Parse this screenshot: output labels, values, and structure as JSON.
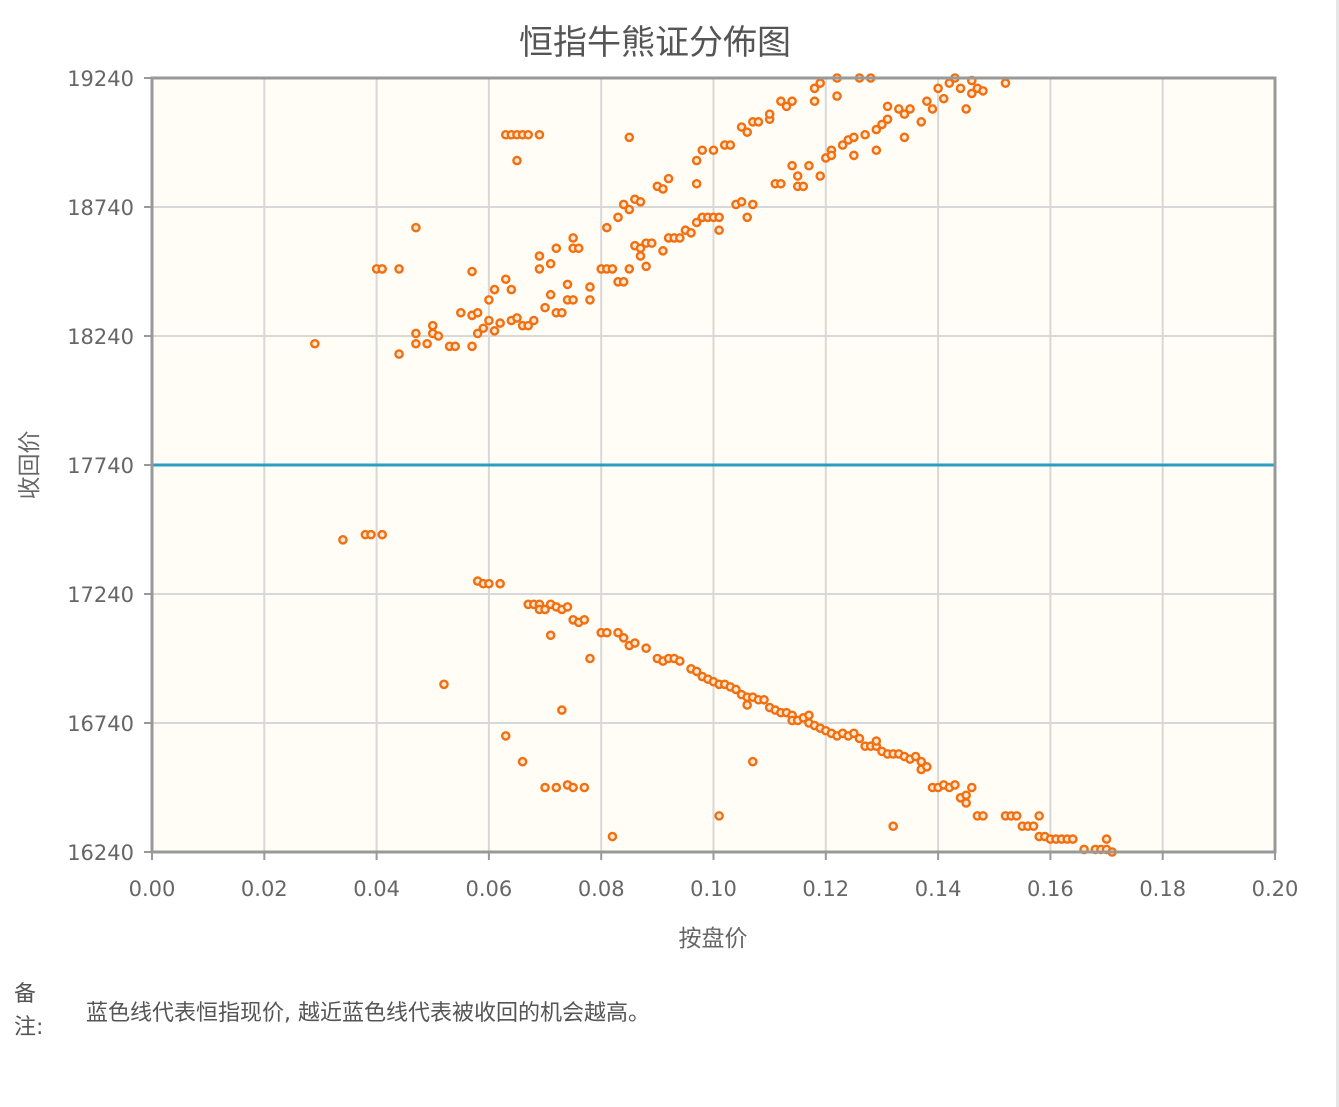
{
  "chart_data": {
    "type": "scatter",
    "title": "恒指牛熊证分佈图",
    "xlabel": "按盘价",
    "ylabel": "收回价",
    "xlim": [
      0,
      0.2
    ],
    "ylim": [
      16240,
      19240
    ],
    "x_ticks": [
      "0.00",
      "0.02",
      "0.04",
      "0.06",
      "0.08",
      "0.10",
      "0.12",
      "0.14",
      "0.16",
      "0.18",
      "0.20"
    ],
    "y_ticks": [
      "16240",
      "16740",
      "17240",
      "17740",
      "18240",
      "18740",
      "19240"
    ],
    "grid": true,
    "reference_line": {
      "y": 17740,
      "color": "#2a9fc2"
    },
    "point_color": "#f26f0f",
    "background": "#fffdf6",
    "points": [
      [
        0.029,
        18210
      ],
      [
        0.034,
        17450
      ],
      [
        0.038,
        17470
      ],
      [
        0.039,
        17470
      ],
      [
        0.041,
        17470
      ],
      [
        0.04,
        18500
      ],
      [
        0.041,
        18500
      ],
      [
        0.044,
        18500
      ],
      [
        0.044,
        18170
      ],
      [
        0.047,
        18210
      ],
      [
        0.047,
        18250
      ],
      [
        0.047,
        18660
      ],
      [
        0.049,
        18210
      ],
      [
        0.05,
        18250
      ],
      [
        0.05,
        18280
      ],
      [
        0.051,
        18240
      ],
      [
        0.052,
        16890
      ],
      [
        0.053,
        18200
      ],
      [
        0.054,
        18200
      ],
      [
        0.055,
        18330
      ],
      [
        0.057,
        18320
      ],
      [
        0.057,
        18320
      ],
      [
        0.058,
        18330
      ],
      [
        0.057,
        18200
      ],
      [
        0.057,
        18490
      ],
      [
        0.058,
        18250
      ],
      [
        0.059,
        18270
      ],
      [
        0.06,
        18300
      ],
      [
        0.06,
        18380
      ],
      [
        0.061,
        18420
      ],
      [
        0.061,
        18260
      ],
      [
        0.062,
        18290
      ],
      [
        0.063,
        18460
      ],
      [
        0.064,
        18420
      ],
      [
        0.064,
        18300
      ],
      [
        0.065,
        18310
      ],
      [
        0.066,
        18280
      ],
      [
        0.067,
        18280
      ],
      [
        0.068,
        18300
      ],
      [
        0.069,
        18500
      ],
      [
        0.069,
        18550
      ],
      [
        0.07,
        18350
      ],
      [
        0.071,
        18400
      ],
      [
        0.071,
        18520
      ],
      [
        0.072,
        18580
      ],
      [
        0.072,
        18330
      ],
      [
        0.073,
        18330
      ],
      [
        0.074,
        18380
      ],
      [
        0.074,
        18440
      ],
      [
        0.075,
        18380
      ],
      [
        0.075,
        18620
      ],
      [
        0.075,
        18580
      ],
      [
        0.076,
        18580
      ],
      [
        0.078,
        18380
      ],
      [
        0.078,
        18430
      ],
      [
        0.08,
        18500
      ],
      [
        0.081,
        18500
      ],
      [
        0.081,
        18660
      ],
      [
        0.082,
        18500
      ],
      [
        0.083,
        18450
      ],
      [
        0.083,
        18700
      ],
      [
        0.084,
        18450
      ],
      [
        0.084,
        18750
      ],
      [
        0.085,
        18500
      ],
      [
        0.085,
        18730
      ],
      [
        0.086,
        18590
      ],
      [
        0.086,
        18770
      ],
      [
        0.087,
        18550
      ],
      [
        0.087,
        18760
      ],
      [
        0.087,
        18580
      ],
      [
        0.088,
        18600
      ],
      [
        0.088,
        18510
      ],
      [
        0.089,
        18600
      ],
      [
        0.09,
        18820
      ],
      [
        0.091,
        18570
      ],
      [
        0.091,
        18810
      ],
      [
        0.092,
        18850
      ],
      [
        0.092,
        18620
      ],
      [
        0.093,
        18620
      ],
      [
        0.094,
        18620
      ],
      [
        0.095,
        18650
      ],
      [
        0.096,
        18640
      ],
      [
        0.097,
        18680
      ],
      [
        0.097,
        18830
      ],
      [
        0.097,
        18920
      ],
      [
        0.098,
        18960
      ],
      [
        0.098,
        18700
      ],
      [
        0.099,
        18700
      ],
      [
        0.1,
        18700
      ],
      [
        0.1,
        18960
      ],
      [
        0.101,
        18700
      ],
      [
        0.101,
        18650
      ],
      [
        0.102,
        18980
      ],
      [
        0.103,
        18980
      ],
      [
        0.104,
        18750
      ],
      [
        0.105,
        18760
      ],
      [
        0.105,
        19050
      ],
      [
        0.106,
        18700
      ],
      [
        0.106,
        19030
      ],
      [
        0.107,
        18750
      ],
      [
        0.107,
        19070
      ],
      [
        0.108,
        19070
      ],
      [
        0.11,
        19080
      ],
      [
        0.11,
        19100
      ],
      [
        0.111,
        18830
      ],
      [
        0.112,
        18830
      ],
      [
        0.112,
        19150
      ],
      [
        0.113,
        19130
      ],
      [
        0.114,
        19150
      ],
      [
        0.114,
        18900
      ],
      [
        0.115,
        18860
      ],
      [
        0.115,
        18820
      ],
      [
        0.116,
        18820
      ],
      [
        0.117,
        18900
      ],
      [
        0.118,
        19150
      ],
      [
        0.118,
        19200
      ],
      [
        0.119,
        18860
      ],
      [
        0.119,
        19220
      ],
      [
        0.12,
        18930
      ],
      [
        0.121,
        18960
      ],
      [
        0.121,
        18940
      ],
      [
        0.122,
        19170
      ],
      [
        0.122,
        19240
      ],
      [
        0.123,
        18980
      ],
      [
        0.124,
        19000
      ],
      [
        0.125,
        18940
      ],
      [
        0.125,
        19010
      ],
      [
        0.126,
        19240
      ],
      [
        0.127,
        19020
      ],
      [
        0.128,
        19240
      ],
      [
        0.129,
        18960
      ],
      [
        0.129,
        19040
      ],
      [
        0.13,
        19060
      ],
      [
        0.131,
        19080
      ],
      [
        0.131,
        19130
      ],
      [
        0.133,
        19120
      ],
      [
        0.134,
        19100
      ],
      [
        0.134,
        19010
      ],
      [
        0.135,
        19120
      ],
      [
        0.137,
        19070
      ],
      [
        0.138,
        19150
      ],
      [
        0.139,
        19120
      ],
      [
        0.14,
        19200
      ],
      [
        0.141,
        19160
      ],
      [
        0.142,
        19220
      ],
      [
        0.143,
        19240
      ],
      [
        0.144,
        19200
      ],
      [
        0.145,
        19120
      ],
      [
        0.146,
        19180
      ],
      [
        0.146,
        19230
      ],
      [
        0.147,
        19200
      ],
      [
        0.148,
        19190
      ],
      [
        0.152,
        19220
      ],
      [
        0.063,
        19020
      ],
      [
        0.064,
        19020
      ],
      [
        0.065,
        19020
      ],
      [
        0.065,
        18920
      ],
      [
        0.066,
        19020
      ],
      [
        0.067,
        19020
      ],
      [
        0.069,
        19020
      ],
      [
        0.085,
        19010
      ],
      [
        0.058,
        17290
      ],
      [
        0.059,
        17280
      ],
      [
        0.06,
        17280
      ],
      [
        0.062,
        17280
      ],
      [
        0.063,
        16690
      ],
      [
        0.066,
        16590
      ],
      [
        0.067,
        17200
      ],
      [
        0.068,
        17200
      ],
      [
        0.069,
        17200
      ],
      [
        0.069,
        17180
      ],
      [
        0.07,
        17180
      ],
      [
        0.07,
        16490
      ],
      [
        0.071,
        17200
      ],
      [
        0.071,
        17080
      ],
      [
        0.072,
        16490
      ],
      [
        0.072,
        17190
      ],
      [
        0.073,
        16790
      ],
      [
        0.073,
        17180
      ],
      [
        0.074,
        17190
      ],
      [
        0.074,
        16500
      ],
      [
        0.075,
        17140
      ],
      [
        0.075,
        16490
      ],
      [
        0.076,
        17130
      ],
      [
        0.077,
        17140
      ],
      [
        0.077,
        16490
      ],
      [
        0.078,
        16990
      ],
      [
        0.08,
        17090
      ],
      [
        0.081,
        17090
      ],
      [
        0.082,
        16300
      ],
      [
        0.083,
        17090
      ],
      [
        0.084,
        17070
      ],
      [
        0.085,
        17040
      ],
      [
        0.086,
        17050
      ],
      [
        0.088,
        17030
      ],
      [
        0.09,
        16990
      ],
      [
        0.091,
        16980
      ],
      [
        0.092,
        16990
      ],
      [
        0.093,
        16990
      ],
      [
        0.094,
        16980
      ],
      [
        0.096,
        16950
      ],
      [
        0.097,
        16940
      ],
      [
        0.098,
        16920
      ],
      [
        0.099,
        16910
      ],
      [
        0.1,
        16900
      ],
      [
        0.101,
        16890
      ],
      [
        0.101,
        16380
      ],
      [
        0.102,
        16890
      ],
      [
        0.103,
        16880
      ],
      [
        0.104,
        16870
      ],
      [
        0.105,
        16850
      ],
      [
        0.106,
        16840
      ],
      [
        0.106,
        16810
      ],
      [
        0.107,
        16840
      ],
      [
        0.107,
        16590
      ],
      [
        0.108,
        16830
      ],
      [
        0.109,
        16830
      ],
      [
        0.11,
        16800
      ],
      [
        0.111,
        16790
      ],
      [
        0.112,
        16780
      ],
      [
        0.113,
        16780
      ],
      [
        0.114,
        16770
      ],
      [
        0.114,
        16750
      ],
      [
        0.115,
        16750
      ],
      [
        0.116,
        16760
      ],
      [
        0.117,
        16740
      ],
      [
        0.117,
        16770
      ],
      [
        0.118,
        16730
      ],
      [
        0.119,
        16720
      ],
      [
        0.12,
        16710
      ],
      [
        0.121,
        16700
      ],
      [
        0.122,
        16690
      ],
      [
        0.123,
        16700
      ],
      [
        0.124,
        16690
      ],
      [
        0.125,
        16700
      ],
      [
        0.126,
        16680
      ],
      [
        0.127,
        16650
      ],
      [
        0.128,
        16650
      ],
      [
        0.129,
        16650
      ],
      [
        0.129,
        16670
      ],
      [
        0.13,
        16630
      ],
      [
        0.131,
        16620
      ],
      [
        0.132,
        16620
      ],
      [
        0.132,
        16340
      ],
      [
        0.133,
        16620
      ],
      [
        0.134,
        16610
      ],
      [
        0.135,
        16600
      ],
      [
        0.136,
        16610
      ],
      [
        0.137,
        16590
      ],
      [
        0.137,
        16560
      ],
      [
        0.138,
        16570
      ],
      [
        0.139,
        16490
      ],
      [
        0.14,
        16490
      ],
      [
        0.141,
        16500
      ],
      [
        0.142,
        16490
      ],
      [
        0.143,
        16500
      ],
      [
        0.144,
        16450
      ],
      [
        0.145,
        16460
      ],
      [
        0.145,
        16430
      ],
      [
        0.146,
        16490
      ],
      [
        0.147,
        16380
      ],
      [
        0.148,
        16380
      ],
      [
        0.152,
        16380
      ],
      [
        0.153,
        16380
      ],
      [
        0.154,
        16380
      ],
      [
        0.155,
        16340
      ],
      [
        0.156,
        16340
      ],
      [
        0.157,
        16340
      ],
      [
        0.158,
        16380
      ],
      [
        0.158,
        16300
      ],
      [
        0.159,
        16300
      ],
      [
        0.16,
        16290
      ],
      [
        0.161,
        16290
      ],
      [
        0.162,
        16290
      ],
      [
        0.163,
        16290
      ],
      [
        0.164,
        16290
      ],
      [
        0.166,
        16250
      ],
      [
        0.168,
        16250
      ],
      [
        0.169,
        16250
      ],
      [
        0.17,
        16290
      ],
      [
        0.17,
        16250
      ],
      [
        0.171,
        16240
      ]
    ]
  },
  "note": {
    "label": "备注:",
    "text": "蓝色线代表恒指现价, 越近蓝色线代表被收回的机会越高。"
  }
}
